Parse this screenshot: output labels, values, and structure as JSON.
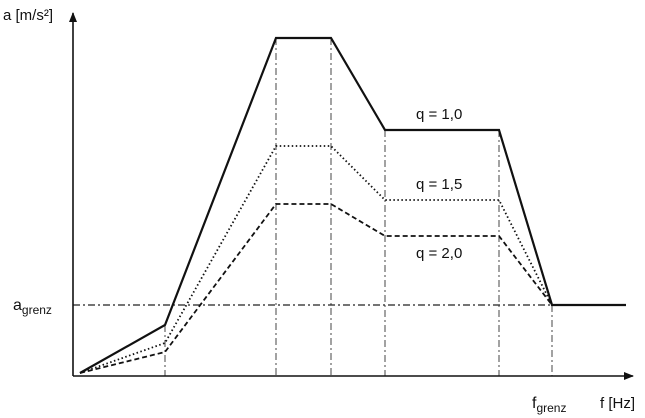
{
  "axes": {
    "y_label": "a [m/s²]",
    "x_label": "f [Hz]"
  },
  "marks": {
    "a_grenz": {
      "main": "a",
      "sub": "grenz"
    },
    "f_grenz": {
      "main": "f",
      "sub": "grenz"
    }
  },
  "curves": [
    {
      "label": "q = 1,0",
      "style": "solid"
    },
    {
      "label": "q = 1,5",
      "style": "dotted"
    },
    {
      "label": "q = 2,0",
      "style": "dashed"
    }
  ],
  "colors": {
    "ink": "#111111",
    "background": "#ffffff"
  }
}
